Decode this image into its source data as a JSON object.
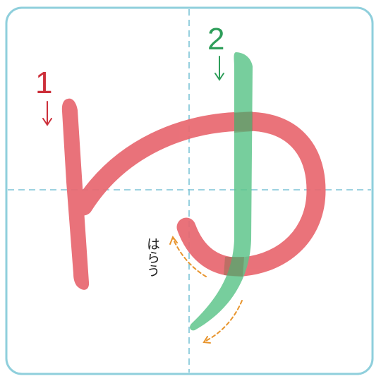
{
  "character": "ゆ",
  "strokes": [
    {
      "number": "1",
      "color": "#e8676f",
      "number_color": "#cc2f3a"
    },
    {
      "number": "2",
      "color": "#5fc68c",
      "number_color": "#2e9e5a"
    }
  ],
  "annotation": {
    "text": "はらう",
    "color": "#222222",
    "arrow_color": "#e8952e"
  },
  "grid": {
    "border_color": "#8fcfdc",
    "guide_color": "#7dc4d6"
  }
}
